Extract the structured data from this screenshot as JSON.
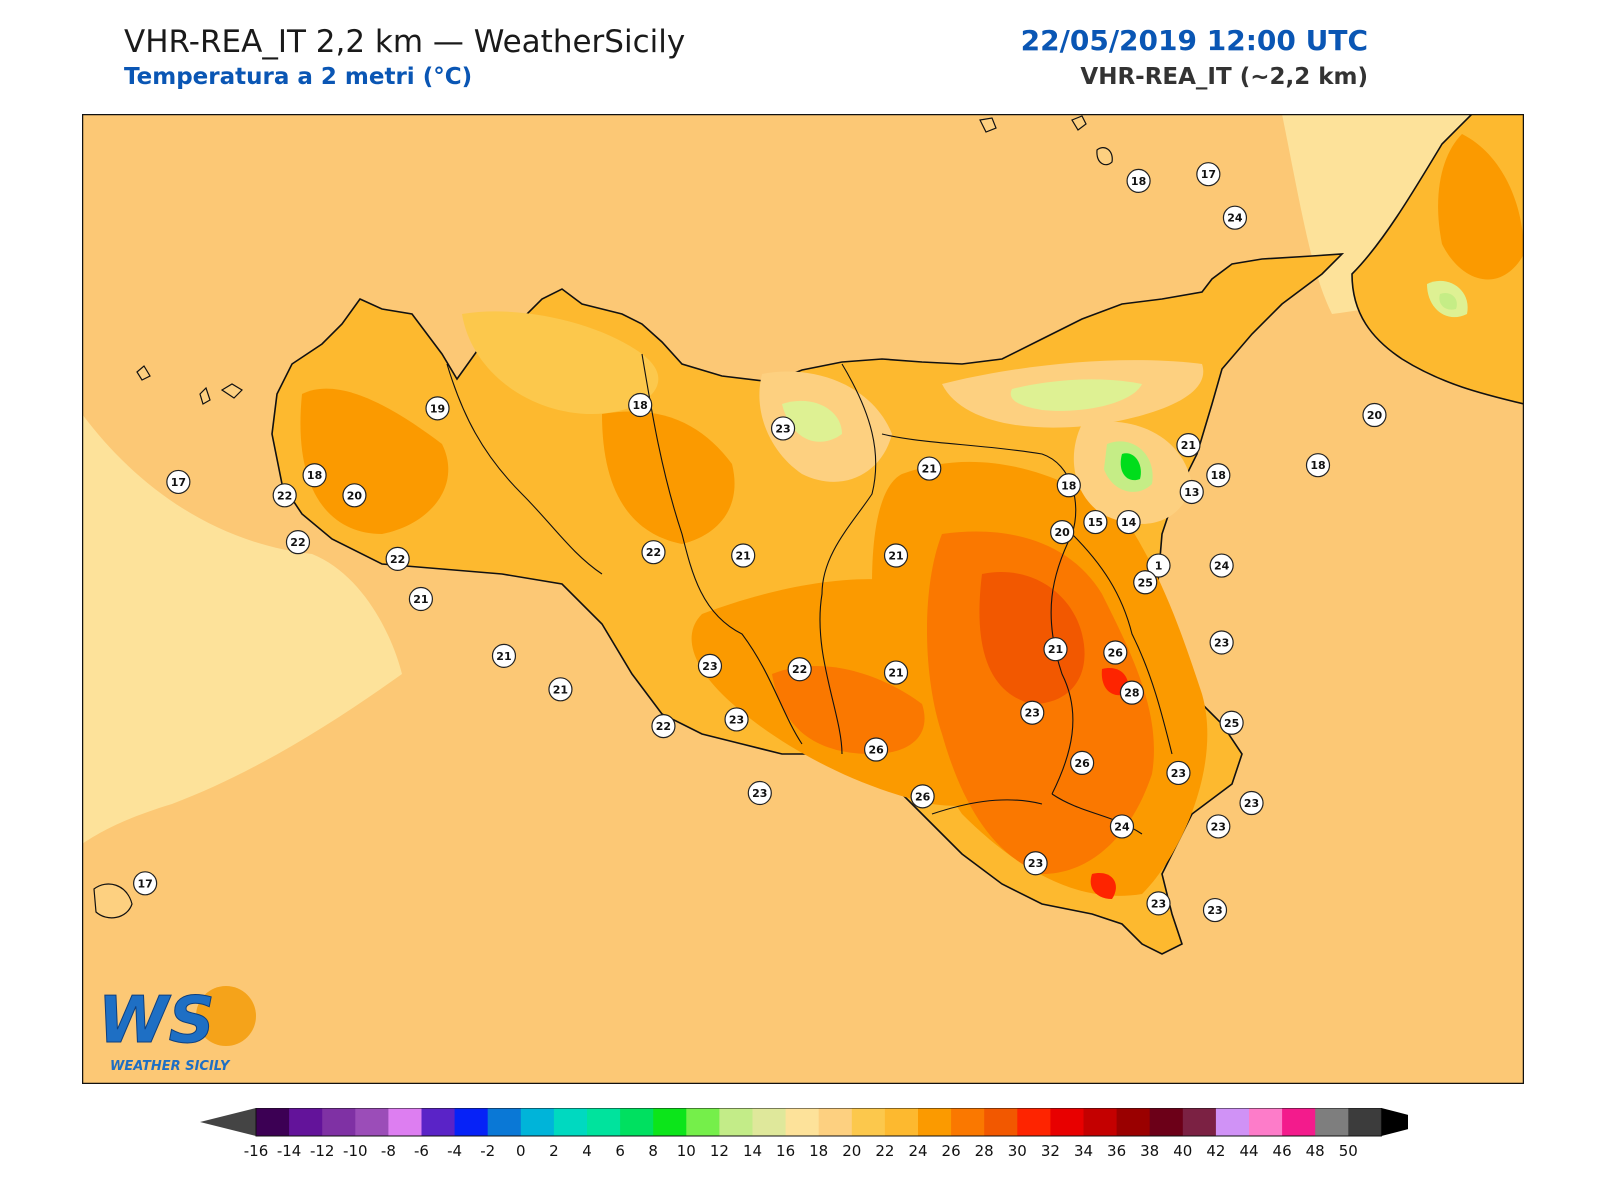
{
  "header": {
    "title": "VHR-REA_IT 2,2 km — WeatherSicily",
    "subtitle": "Temperatura a 2 metri (°C)",
    "datetime": "22/05/2019 12:00 UTC",
    "model": "VHR-REA_IT (~2,2 km)"
  },
  "logo": {
    "letters": "WS",
    "name": "WEATHER SICILY"
  },
  "colors": {
    "sea": "#fcc875",
    "sea_light": "#fde29a",
    "land_18_20": "#fdd080",
    "land_22": "#fdb92f",
    "land_24": "#fb9a00",
    "land_26": "#fa7800",
    "land_28": "#f25800",
    "land_30": "#fe2400",
    "cold_14": "#def193",
    "cold_12": "#c5ed86",
    "cold_8": "#00dd1b",
    "coast": "#111111",
    "label_bg": "#ffffff"
  },
  "stations": [
    {
      "value": "18",
      "lon": 14.94,
      "lat": 38.9
    },
    {
      "value": "17",
      "lon": 15.15,
      "lat": 38.92
    },
    {
      "value": "24",
      "lon": 15.23,
      "lat": 38.79
    },
    {
      "value": "19",
      "lon": 12.83,
      "lat": 38.22
    },
    {
      "value": "18",
      "lon": 13.44,
      "lat": 38.23
    },
    {
      "value": "23",
      "lon": 13.87,
      "lat": 38.16
    },
    {
      "value": "21",
      "lon": 14.31,
      "lat": 38.04
    },
    {
      "value": "18",
      "lon": 14.73,
      "lat": 37.99
    },
    {
      "value": "18",
      "lon": 15.18,
      "lat": 38.02
    },
    {
      "value": "21",
      "lon": 15.09,
      "lat": 38.11
    },
    {
      "value": "20",
      "lon": 15.65,
      "lat": 38.2
    },
    {
      "value": "18",
      "lon": 15.48,
      "lat": 38.05
    },
    {
      "value": "17",
      "lon": 12.05,
      "lat": 38.0
    },
    {
      "value": "18",
      "lon": 12.46,
      "lat": 38.02
    },
    {
      "value": "22",
      "lon": 12.37,
      "lat": 37.96
    },
    {
      "value": "20",
      "lon": 12.58,
      "lat": 37.96
    },
    {
      "value": "15",
      "lon": 14.81,
      "lat": 37.88
    },
    {
      "value": "13",
      "lon": 15.1,
      "lat": 37.97
    },
    {
      "value": "14",
      "lon": 14.91,
      "lat": 37.88
    },
    {
      "value": "22",
      "lon": 12.41,
      "lat": 37.82
    },
    {
      "value": "22",
      "lon": 12.71,
      "lat": 37.77
    },
    {
      "value": "22",
      "lon": 13.48,
      "lat": 37.79
    },
    {
      "value": "21",
      "lon": 13.75,
      "lat": 37.78
    },
    {
      "value": "21",
      "lon": 14.21,
      "lat": 37.78
    },
    {
      "value": "20",
      "lon": 14.71,
      "lat": 37.85
    },
    {
      "value": "1",
      "lon": 15.0,
      "lat": 37.75
    },
    {
      "value": "24",
      "lon": 15.19,
      "lat": 37.75
    },
    {
      "value": "21",
      "lon": 12.78,
      "lat": 37.65
    },
    {
      "value": "25",
      "lon": 14.96,
      "lat": 37.7
    },
    {
      "value": "21",
      "lon": 13.03,
      "lat": 37.48
    },
    {
      "value": "23",
      "lon": 13.65,
      "lat": 37.45
    },
    {
      "value": "22",
      "lon": 13.92,
      "lat": 37.44
    },
    {
      "value": "21",
      "lon": 14.21,
      "lat": 37.43
    },
    {
      "value": "21",
      "lon": 14.69,
      "lat": 37.5
    },
    {
      "value": "26",
      "lon": 14.87,
      "lat": 37.49
    },
    {
      "value": "23",
      "lon": 15.19,
      "lat": 37.52
    },
    {
      "value": "21",
      "lon": 13.2,
      "lat": 37.38
    },
    {
      "value": "28",
      "lon": 14.92,
      "lat": 37.37
    },
    {
      "value": "22",
      "lon": 13.51,
      "lat": 37.27
    },
    {
      "value": "23",
      "lon": 13.73,
      "lat": 37.29
    },
    {
      "value": "23",
      "lon": 14.62,
      "lat": 37.31
    },
    {
      "value": "25",
      "lon": 15.22,
      "lat": 37.28
    },
    {
      "value": "26",
      "lon": 14.15,
      "lat": 37.2
    },
    {
      "value": "26",
      "lon": 14.77,
      "lat": 37.16
    },
    {
      "value": "23",
      "lon": 15.06,
      "lat": 37.13
    },
    {
      "value": "23",
      "lon": 13.8,
      "lat": 37.07
    },
    {
      "value": "26",
      "lon": 14.29,
      "lat": 37.06
    },
    {
      "value": "23",
      "lon": 15.28,
      "lat": 37.04
    },
    {
      "value": "24",
      "lon": 14.89,
      "lat": 36.97
    },
    {
      "value": "23",
      "lon": 15.18,
      "lat": 36.97
    },
    {
      "value": "23",
      "lon": 14.63,
      "lat": 36.86
    },
    {
      "value": "17",
      "lon": 11.95,
      "lat": 36.8
    },
    {
      "value": "23",
      "lon": 15.0,
      "lat": 36.74
    },
    {
      "value": "23",
      "lon": 15.17,
      "lat": 36.72
    }
  ],
  "colorbar": {
    "labels": [
      "-16",
      "-14",
      "-12",
      "-10",
      "-8",
      "-6",
      "-4",
      "-2",
      "0",
      "2",
      "4",
      "6",
      "8",
      "10",
      "12",
      "14",
      "16",
      "18",
      "20",
      "22",
      "24",
      "26",
      "28",
      "30",
      "32",
      "34",
      "36",
      "38",
      "40",
      "42",
      "44",
      "46",
      "48",
      "50"
    ],
    "colors": [
      "#3c0054",
      "#63139a",
      "#7f31a4",
      "#9b4db8",
      "#dd7ef1",
      "#5a23c7",
      "#0622f7",
      "#0a78d6",
      "#00b4d9",
      "#00d9c0",
      "#00e39d",
      "#00e060",
      "#0ce51a",
      "#75ef4a",
      "#c3ec88",
      "#dfe89b",
      "#fde29a",
      "#fdd080",
      "#fcc84c",
      "#fdb92f",
      "#fb9a00",
      "#fa7800",
      "#f25800",
      "#fe2400",
      "#e80000",
      "#c40000",
      "#9a0000",
      "#6c0018",
      "#7b2143",
      "#d092f6",
      "#fd7cc9",
      "#f31b8c",
      "#7e7e7e",
      "#3c3c3c"
    ],
    "low_extend": "#444444",
    "high_extend": "#000000"
  }
}
